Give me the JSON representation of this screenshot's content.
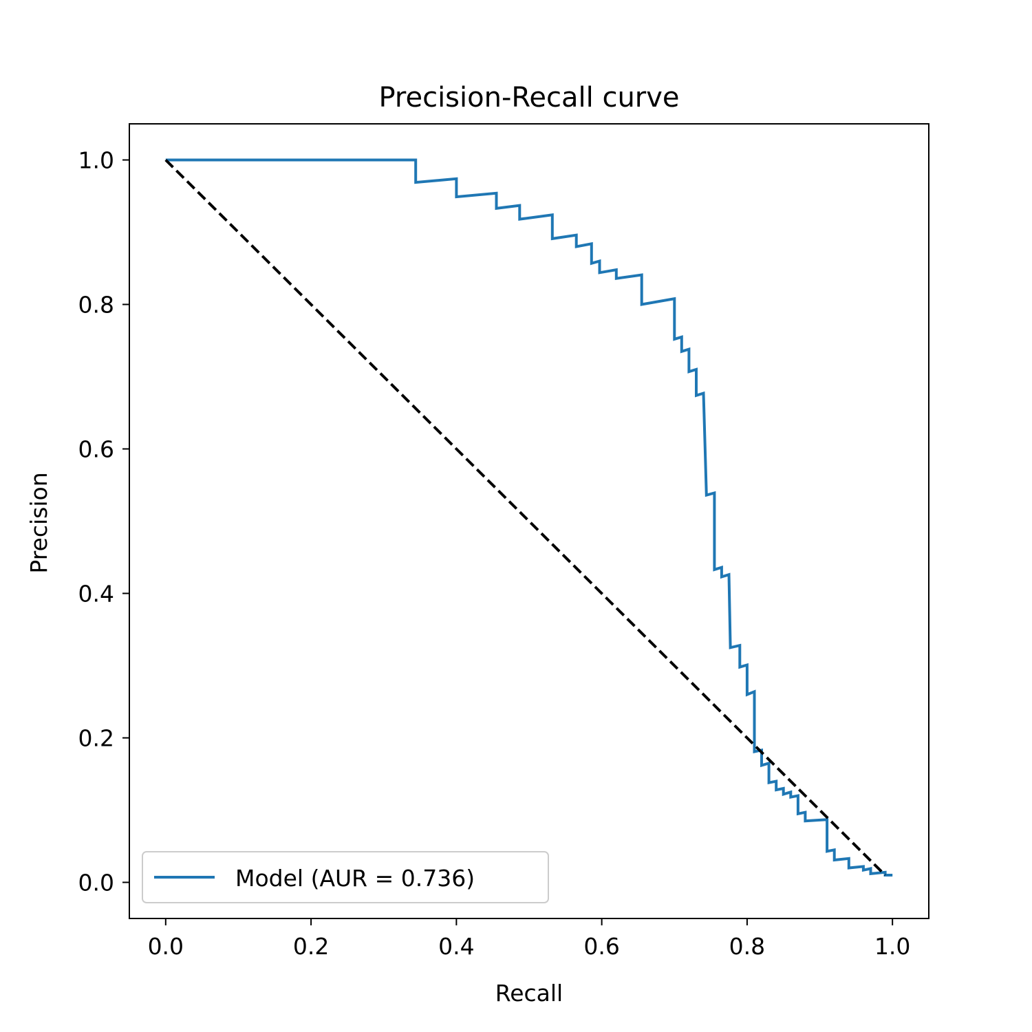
{
  "chart_data": {
    "type": "line",
    "title": "Precision-Recall curve",
    "xlabel": "Recall",
    "ylabel": "Precision",
    "xlim": [
      -0.05,
      1.05
    ],
    "ylim": [
      -0.05,
      1.05
    ],
    "xticks": [
      "0.0",
      "0.2",
      "0.4",
      "0.6",
      "0.8",
      "1.0"
    ],
    "yticks": [
      "0.0",
      "0.2",
      "0.4",
      "0.6",
      "0.8",
      "1.0"
    ],
    "grid": false,
    "legend_position": "lower left",
    "series": [
      {
        "name": "Model (AUR = 0.736)",
        "color": "#1f77b4",
        "style": "solid",
        "points": [
          [
            0.0,
            1.0
          ],
          [
            0.344,
            1.0
          ],
          [
            0.344,
            0.969
          ],
          [
            0.4,
            0.974
          ],
          [
            0.4,
            0.949
          ],
          [
            0.455,
            0.954
          ],
          [
            0.455,
            0.933
          ],
          [
            0.487,
            0.937
          ],
          [
            0.487,
            0.918
          ],
          [
            0.532,
            0.924
          ],
          [
            0.532,
            0.891
          ],
          [
            0.565,
            0.896
          ],
          [
            0.565,
            0.88
          ],
          [
            0.586,
            0.884
          ],
          [
            0.586,
            0.857
          ],
          [
            0.597,
            0.86
          ],
          [
            0.597,
            0.844
          ],
          [
            0.62,
            0.848
          ],
          [
            0.62,
            0.836
          ],
          [
            0.655,
            0.841
          ],
          [
            0.655,
            0.8
          ],
          [
            0.7,
            0.808
          ],
          [
            0.7,
            0.752
          ],
          [
            0.71,
            0.755
          ],
          [
            0.71,
            0.735
          ],
          [
            0.72,
            0.738
          ],
          [
            0.72,
            0.707
          ],
          [
            0.73,
            0.71
          ],
          [
            0.73,
            0.674
          ],
          [
            0.74,
            0.677
          ],
          [
            0.744,
            0.536
          ],
          [
            0.755,
            0.539
          ],
          [
            0.755,
            0.433
          ],
          [
            0.765,
            0.436
          ],
          [
            0.765,
            0.423
          ],
          [
            0.775,
            0.426
          ],
          [
            0.777,
            0.325
          ],
          [
            0.79,
            0.328
          ],
          [
            0.79,
            0.298
          ],
          [
            0.8,
            0.301
          ],
          [
            0.8,
            0.26
          ],
          [
            0.81,
            0.264
          ],
          [
            0.81,
            0.181
          ],
          [
            0.82,
            0.183
          ],
          [
            0.82,
            0.162
          ],
          [
            0.83,
            0.165
          ],
          [
            0.83,
            0.138
          ],
          [
            0.84,
            0.14
          ],
          [
            0.84,
            0.128
          ],
          [
            0.85,
            0.13
          ],
          [
            0.85,
            0.122
          ],
          [
            0.86,
            0.125
          ],
          [
            0.86,
            0.118
          ],
          [
            0.87,
            0.12
          ],
          [
            0.87,
            0.095
          ],
          [
            0.88,
            0.097
          ],
          [
            0.88,
            0.085
          ],
          [
            0.91,
            0.087
          ],
          [
            0.91,
            0.043
          ],
          [
            0.92,
            0.045
          ],
          [
            0.92,
            0.031
          ],
          [
            0.94,
            0.033
          ],
          [
            0.94,
            0.02
          ],
          [
            0.96,
            0.022
          ],
          [
            0.96,
            0.017
          ],
          [
            0.97,
            0.019
          ],
          [
            0.97,
            0.012
          ],
          [
            0.99,
            0.014
          ],
          [
            0.99,
            0.01
          ],
          [
            1.0,
            0.01
          ]
        ]
      },
      {
        "name": "",
        "color": "#000000",
        "style": "dashed",
        "points": [
          [
            0.0,
            1.0
          ],
          [
            0.99,
            0.01
          ]
        ]
      }
    ]
  }
}
